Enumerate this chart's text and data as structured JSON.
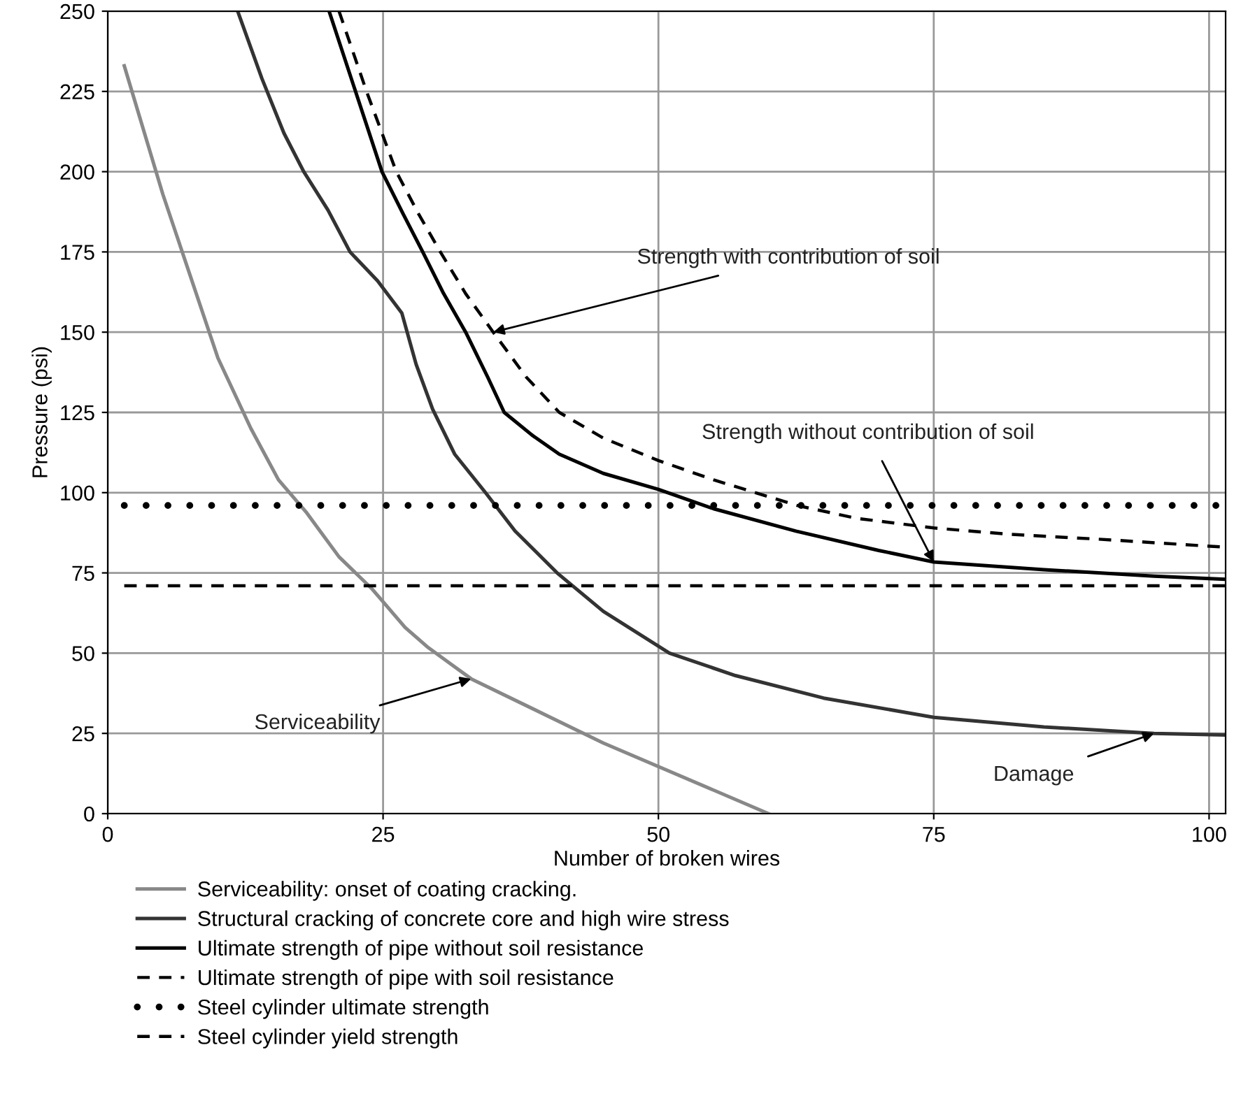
{
  "chart_data": {
    "type": "line",
    "xlabel": "Number of broken wires",
    "ylabel": "Pressure (psi)",
    "xlim": [
      0,
      101.5
    ],
    "ylim": [
      0,
      250
    ],
    "xticks": [
      0,
      25,
      50,
      75,
      100
    ],
    "yticks": [
      0,
      25,
      50,
      75,
      100,
      125,
      150,
      175,
      200,
      225,
      250
    ],
    "grid": true,
    "legend": "bottom",
    "series": [
      {
        "name": "Serviceability: onset of coating cracking.",
        "color": "#888888",
        "line_style": "solid",
        "x": [
          1.5,
          5,
          10,
          13,
          15.5,
          18,
          21,
          24,
          25,
          27,
          29,
          31,
          33,
          45,
          60
        ],
        "values": [
          233,
          193,
          142,
          120,
          104,
          94,
          80,
          70,
          66,
          58,
          52,
          47,
          42,
          22,
          0
        ]
      },
      {
        "name": "Structural cracking of concrete core and high wire stress",
        "color": "#333333",
        "line_style": "solid",
        "x": [
          11.8,
          14,
          16,
          17.8,
          20,
          22,
          24.5,
          26.7,
          28,
          29.5,
          31.5,
          34.3,
          37,
          40.8,
          45,
          51,
          57,
          65,
          75,
          85,
          95,
          101.5
        ],
        "values": [
          250,
          229,
          212,
          200,
          188,
          175,
          166,
          156,
          140,
          126,
          112,
          100,
          88,
          75,
          63,
          50,
          43,
          36,
          30,
          27,
          25,
          24.5
        ]
      },
      {
        "name": "Ultimate strength of pipe without soil resistance",
        "color": "#000000",
        "line_style": "solid",
        "x": [
          20.1,
          22.5,
          24.9,
          26.8,
          28.6,
          30.5,
          32.5,
          34.5,
          36,
          38.5,
          41,
          45,
          50,
          55,
          62.5,
          70,
          75,
          85,
          95,
          101.5
        ],
        "values": [
          250,
          225,
          200,
          187,
          175,
          162,
          150,
          136,
          125,
          118,
          112,
          106,
          101,
          95,
          88,
          82,
          78.4,
          76,
          74,
          73
        ]
      },
      {
        "name": "Ultimate strength of pipe with soil resistance",
        "color": "#000000",
        "line_style": "dashed",
        "x": [
          21,
          23.5,
          26.2,
          28.2,
          30.2,
          32.5,
          35,
          38,
          41,
          45,
          50,
          55,
          62.6,
          68,
          75,
          82,
          90,
          101.5
        ],
        "values": [
          250,
          225,
          200,
          187,
          175,
          162,
          150,
          136,
          125,
          117,
          110,
          104,
          96,
          92,
          89,
          87,
          85.5,
          83
        ]
      },
      {
        "name": "Steel cylinder ultimate strength",
        "color": "#000000",
        "line_style": "dotted",
        "x": [
          1.5,
          101.5
        ],
        "values": [
          96,
          96
        ]
      },
      {
        "name": "Steel cylinder yield strength",
        "color": "#000000",
        "line_style": "dashed",
        "x": [
          1.5,
          101.5
        ],
        "values": [
          71,
          71
        ]
      }
    ],
    "annotations": [
      {
        "text": "Strength with contribution of soil",
        "x": 35,
        "y": 150
      },
      {
        "text": "Strength without contribution of soil",
        "x": 75,
        "y": 78.4
      },
      {
        "text": "Serviceability",
        "x": 33,
        "y": 42
      },
      {
        "text": "Damage",
        "x": 95,
        "y": 25
      }
    ]
  }
}
